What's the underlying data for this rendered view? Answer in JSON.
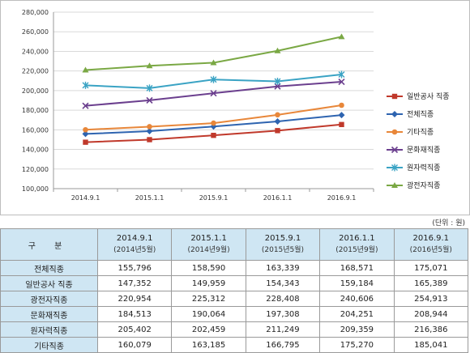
{
  "chart_data": {
    "type": "line",
    "x": [
      "2014.9.1",
      "2015.1.1",
      "2015.9.1",
      "2016.1.1",
      "2016.9.1"
    ],
    "ylim": [
      100000,
      280000
    ],
    "y_ticks": [
      "100,000",
      "120,000",
      "140,000",
      "160,000",
      "180,000",
      "200,000",
      "220,000",
      "240,000",
      "260,000",
      "280,000"
    ],
    "grid": true,
    "legend_placement": "right",
    "series": [
      {
        "name": "일반공사 직종",
        "color": "#c0392b",
        "marker": "square",
        "values": [
          147352,
          149959,
          154343,
          159184,
          165389
        ]
      },
      {
        "name": "전체직종",
        "color": "#2e64b0",
        "marker": "diamond",
        "values": [
          155796,
          158590,
          163339,
          168571,
          175071
        ]
      },
      {
        "name": "기타직종",
        "color": "#e8873a",
        "marker": "circle",
        "values": [
          160079,
          163185,
          166795,
          175270,
          185041
        ]
      },
      {
        "name": "문화재직종",
        "color": "#6b3f8e",
        "marker": "x",
        "values": [
          184513,
          190064,
          197308,
          204251,
          208944
        ]
      },
      {
        "name": "원자력직종",
        "color": "#3aa3c4",
        "marker": "star",
        "values": [
          205402,
          202459,
          211249,
          209359,
          216386
        ]
      },
      {
        "name": "광전자직종",
        "color": "#7aa844",
        "marker": "triangle",
        "values": [
          220954,
          225312,
          228408,
          240606,
          254913
        ]
      }
    ]
  },
  "table": {
    "unit_note": "(단위 : 원)",
    "category_header": "구 분",
    "columns": [
      {
        "main": "2014.9.1",
        "sub": "(2014년5월)"
      },
      {
        "main": "2015.1.1",
        "sub": "(2014년9월)"
      },
      {
        "main": "2015.9.1",
        "sub": "(2015년5월)"
      },
      {
        "main": "2016.1.1",
        "sub": "(2015년9월)"
      },
      {
        "main": "2016.9.1",
        "sub": "(2016년5월)"
      }
    ],
    "rows": [
      {
        "label": "전체직종",
        "cells": [
          "155,796",
          "158,590",
          "163,339",
          "168,571",
          "175,071"
        ]
      },
      {
        "label": "일반공사 직종",
        "cells": [
          "147,352",
          "149,959",
          "154,343",
          "159,184",
          "165,389"
        ]
      },
      {
        "label": "광전자직종",
        "cells": [
          "220,954",
          "225,312",
          "228,408",
          "240,606",
          "254,913"
        ]
      },
      {
        "label": "문화재직종",
        "cells": [
          "184,513",
          "190,064",
          "197,308",
          "204,251",
          "208,944"
        ]
      },
      {
        "label": "원자력직종",
        "cells": [
          "205,402",
          "202,459",
          "211,249",
          "209,359",
          "216,386"
        ]
      },
      {
        "label": "기타직종",
        "cells": [
          "160,079",
          "163,185",
          "166,795",
          "175,270",
          "185,041"
        ]
      }
    ]
  }
}
